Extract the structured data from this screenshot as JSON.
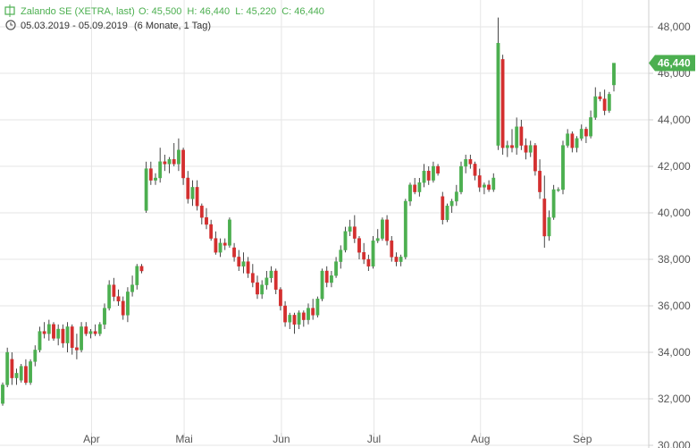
{
  "header": {
    "title": "Zalando SE (XETRA, last)",
    "ohlc": "O: 45,500  H: 46,440  L: 45,220  C: 46,440",
    "range": "05.03.2019 - 05.09.2019",
    "period": "(6 Monate, 1 Tag)"
  },
  "colors": {
    "up": "#4caf50",
    "down": "#d32f2f",
    "grid": "#e6e6e6",
    "label_bg": "#4caf50"
  },
  "chart_data": {
    "type": "candlestick",
    "ylim": [
      30000,
      48500
    ],
    "y_ticks": [
      "30,000",
      "32,000",
      "34,000",
      "36,000",
      "38,000",
      "40,000",
      "42,000",
      "44,000",
      "46,000",
      "48,000"
    ],
    "x_ticks": [
      "Apr",
      "Mai",
      "Jun",
      "Jul",
      "Aug",
      "Sep"
    ],
    "grid": true,
    "last_label": "46,440",
    "last_value": 46440,
    "candles": [
      [
        31800,
        32700,
        31700,
        32600
      ],
      [
        32600,
        34200,
        32500,
        34000
      ],
      [
        33700,
        34000,
        32600,
        32900
      ],
      [
        32900,
        33300,
        32600,
        33100
      ],
      [
        32800,
        33500,
        32700,
        33400
      ],
      [
        33400,
        33700,
        32600,
        32700
      ],
      [
        32700,
        33700,
        32600,
        33600
      ],
      [
        33600,
        34300,
        33400,
        34100
      ],
      [
        34100,
        35100,
        34000,
        34900
      ],
      [
        34900,
        35300,
        34600,
        34800
      ],
      [
        34800,
        35400,
        34500,
        35200
      ],
      [
        35200,
        35300,
        34500,
        34600
      ],
      [
        34600,
        35200,
        34300,
        35000
      ],
      [
        35000,
        35200,
        34200,
        34400
      ],
      [
        34400,
        35300,
        34000,
        35100
      ],
      [
        35100,
        35200,
        33900,
        34200
      ],
      [
        34200,
        34800,
        33700,
        34100
      ],
      [
        34100,
        35300,
        34000,
        35100
      ],
      [
        35100,
        35300,
        34700,
        34800
      ],
      [
        34800,
        35000,
        34600,
        34900
      ],
      [
        34900,
        35200,
        34700,
        34800
      ],
      [
        34800,
        35300,
        34700,
        35200
      ],
      [
        35200,
        36100,
        35000,
        35900
      ],
      [
        35900,
        37100,
        35800,
        36900
      ],
      [
        36900,
        37200,
        36200,
        36400
      ],
      [
        36400,
        36700,
        36000,
        36200
      ],
      [
        36200,
        36400,
        35400,
        35600
      ],
      [
        35600,
        36800,
        35300,
        36600
      ],
      [
        36600,
        37300,
        36400,
        36900
      ],
      [
        36900,
        37800,
        36700,
        37700
      ],
      [
        37700,
        37800,
        37400,
        37500
      ],
      [
        40100,
        42200,
        40000,
        41900
      ],
      [
        41900,
        42200,
        41200,
        41400
      ],
      [
        41400,
        41700,
        41200,
        41500
      ],
      [
        41500,
        42800,
        41300,
        42200
      ],
      [
        42200,
        42500,
        41800,
        42100
      ],
      [
        42100,
        42400,
        41700,
        42300
      ],
      [
        42300,
        43000,
        42000,
        42100
      ],
      [
        42100,
        43200,
        41800,
        42700
      ],
      [
        42700,
        42800,
        41200,
        41500
      ],
      [
        41500,
        41800,
        40400,
        40600
      ],
      [
        40600,
        41400,
        40300,
        41100
      ],
      [
        41100,
        41400,
        40100,
        40300
      ],
      [
        40300,
        40400,
        39500,
        39800
      ],
      [
        39800,
        40200,
        39300,
        39500
      ],
      [
        39500,
        39700,
        38800,
        38900
      ],
      [
        38900,
        39200,
        38200,
        38300
      ],
      [
        38300,
        38900,
        38100,
        38700
      ],
      [
        38700,
        38900,
        38400,
        38600
      ],
      [
        38600,
        39800,
        38500,
        39700
      ],
      [
        38500,
        38700,
        37900,
        38100
      ],
      [
        38100,
        38400,
        37500,
        37700
      ],
      [
        37700,
        38300,
        37400,
        37900
      ],
      [
        37900,
        38100,
        37200,
        37400
      ],
      [
        37400,
        37800,
        36800,
        37000
      ],
      [
        37000,
        37300,
        36300,
        36500
      ],
      [
        36500,
        37100,
        36300,
        36900
      ],
      [
        36900,
        37500,
        36700,
        37200
      ],
      [
        37200,
        37700,
        37000,
        37500
      ],
      [
        37500,
        37600,
        36500,
        36700
      ],
      [
        36700,
        36800,
        35800,
        36000
      ],
      [
        36000,
        36200,
        35100,
        35300
      ],
      [
        35300,
        35700,
        35000,
        35600
      ],
      [
        35600,
        35700,
        34800,
        35200
      ],
      [
        35200,
        35800,
        35000,
        35700
      ],
      [
        35700,
        35800,
        35100,
        35400
      ],
      [
        35400,
        36100,
        35200,
        35900
      ],
      [
        35900,
        36300,
        35400,
        35600
      ],
      [
        35600,
        36400,
        35500,
        36300
      ],
      [
        36300,
        37600,
        36200,
        37500
      ],
      [
        37500,
        37700,
        36800,
        37000
      ],
      [
        37000,
        37500,
        36800,
        37300
      ],
      [
        37300,
        38100,
        37200,
        37900
      ],
      [
        37900,
        38600,
        37600,
        38400
      ],
      [
        38400,
        39400,
        38300,
        39200
      ],
      [
        39200,
        39700,
        39000,
        39400
      ],
      [
        39400,
        39900,
        38700,
        38900
      ],
      [
        38900,
        39000,
        38000,
        38300
      ],
      [
        38300,
        38700,
        37800,
        38000
      ],
      [
        38000,
        38200,
        37500,
        37700
      ],
      [
        37700,
        39000,
        37600,
        38800
      ],
      [
        38800,
        39300,
        38700,
        38900
      ],
      [
        38900,
        39800,
        38800,
        39700
      ],
      [
        39700,
        39900,
        38600,
        38800
      ],
      [
        38800,
        39000,
        37900,
        38100
      ],
      [
        38100,
        38300,
        37700,
        37900
      ],
      [
        37900,
        38200,
        37700,
        38100
      ],
      [
        38100,
        40600,
        38000,
        40500
      ],
      [
        40500,
        41300,
        40300,
        41200
      ],
      [
        41200,
        41500,
        40800,
        40900
      ],
      [
        40900,
        41500,
        40700,
        41300
      ],
      [
        41300,
        42100,
        41100,
        41800
      ],
      [
        41800,
        42000,
        41200,
        41400
      ],
      [
        41400,
        42200,
        41300,
        42000
      ],
      [
        42000,
        42100,
        41600,
        41700
      ],
      [
        40700,
        40900,
        39500,
        39700
      ],
      [
        39700,
        40400,
        39600,
        40300
      ],
      [
        40300,
        40600,
        40000,
        40500
      ],
      [
        40500,
        41200,
        40300,
        40900
      ],
      [
        40900,
        42200,
        40800,
        42000
      ],
      [
        42000,
        42500,
        41700,
        42300
      ],
      [
        42300,
        42500,
        41900,
        42100
      ],
      [
        42100,
        42200,
        41400,
        41600
      ],
      [
        41600,
        41900,
        40900,
        41100
      ],
      [
        41100,
        41300,
        40800,
        41200
      ],
      [
        41200,
        41400,
        40900,
        41000
      ],
      [
        41000,
        41700,
        40900,
        41500
      ],
      [
        42900,
        48400,
        42700,
        47300
      ],
      [
        46600,
        46800,
        42500,
        42800
      ],
      [
        42800,
        43100,
        42400,
        42900
      ],
      [
        42900,
        43600,
        42600,
        42800
      ],
      [
        42800,
        44100,
        42500,
        43700
      ],
      [
        43700,
        44000,
        42700,
        42900
      ],
      [
        42900,
        43200,
        42300,
        42600
      ],
      [
        42600,
        43100,
        42400,
        42900
      ],
      [
        42900,
        43000,
        41600,
        41800
      ],
      [
        41800,
        42300,
        40600,
        40900
      ],
      [
        40600,
        41600,
        38500,
        39000
      ],
      [
        39000,
        40100,
        38800,
        39800
      ],
      [
        39800,
        41200,
        39700,
        41000
      ],
      [
        41000,
        41100,
        40900,
        41000
      ],
      [
        41000,
        43100,
        40800,
        42900
      ],
      [
        42900,
        43600,
        42800,
        43400
      ],
      [
        43400,
        43500,
        42600,
        42800
      ],
      [
        42800,
        43300,
        42600,
        43200
      ],
      [
        43200,
        43800,
        43100,
        43600
      ],
      [
        43600,
        43700,
        43000,
        43300
      ],
      [
        43300,
        44400,
        43200,
        44100
      ],
      [
        44100,
        45400,
        44000,
        45000
      ],
      [
        45000,
        45200,
        44800,
        44900
      ],
      [
        44900,
        45300,
        44200,
        44400
      ],
      [
        44400,
        45200,
        44300,
        45100
      ],
      [
        45500,
        46440,
        45220,
        46440
      ]
    ]
  }
}
